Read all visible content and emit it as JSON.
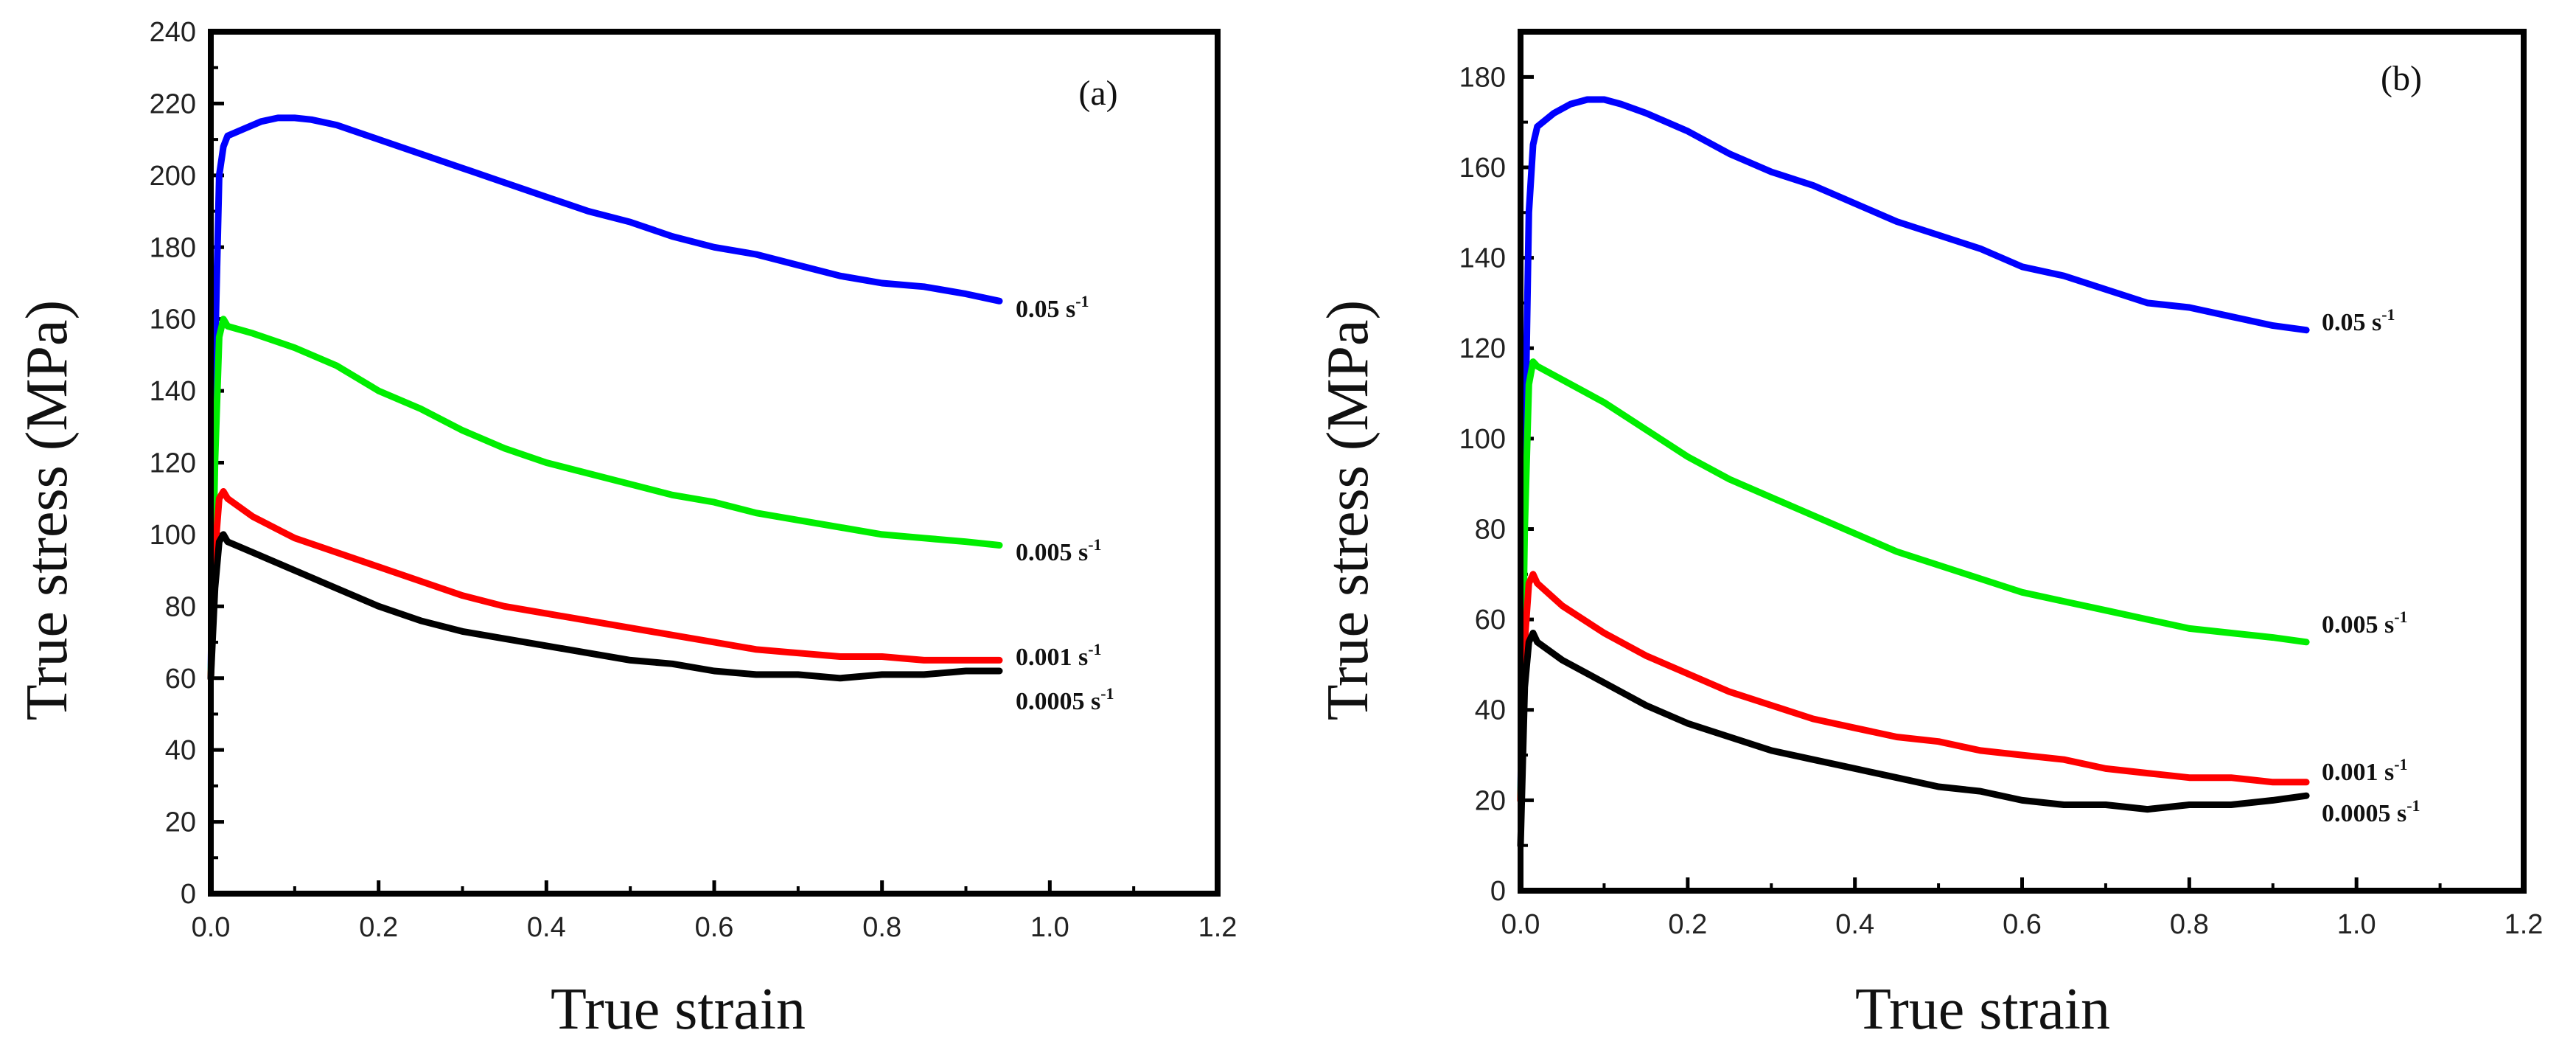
{
  "chart_data": [
    {
      "type": "line",
      "panel_label": "(a)",
      "xlabel": "True strain",
      "ylabel": "True stress (MPa)",
      "xlim": [
        0,
        1.2
      ],
      "ylim": [
        0,
        240
      ],
      "xticks": [
        0.0,
        0.2,
        0.4,
        0.6,
        0.8,
        1.0,
        1.2
      ],
      "xtick_labels": [
        "0.0",
        "0.2",
        "0.4",
        "0.6",
        "0.8",
        "1.0",
        "1.2"
      ],
      "yticks": [
        0,
        20,
        40,
        60,
        80,
        100,
        120,
        140,
        160,
        180,
        200,
        220,
        240
      ],
      "ytick_labels": [
        "0",
        "20",
        "40",
        "60",
        "80",
        "100",
        "120",
        "140",
        "160",
        "180",
        "200",
        "220",
        "240"
      ],
      "series": [
        {
          "name": "0.05",
          "label_text": "0.05 s",
          "label_sup": "-1",
          "color": "#0000ff",
          "x": [
            0.0,
            0.005,
            0.01,
            0.015,
            0.02,
            0.04,
            0.06,
            0.08,
            0.1,
            0.12,
            0.15,
            0.2,
            0.25,
            0.3,
            0.35,
            0.4,
            0.45,
            0.5,
            0.55,
            0.6,
            0.65,
            0.7,
            0.75,
            0.8,
            0.85,
            0.9,
            0.94
          ],
          "y": [
            60,
            150,
            200,
            208,
            211,
            213,
            215,
            216,
            216,
            215.5,
            214,
            210,
            206,
            202,
            198,
            194,
            190,
            187,
            183,
            180,
            178,
            175,
            172,
            170,
            169,
            167,
            165
          ]
        },
        {
          "name": "0.005",
          "label_text": "0.005 s",
          "label_sup": "-1",
          "color": "#00ee00",
          "x": [
            0.0,
            0.005,
            0.01,
            0.015,
            0.02,
            0.05,
            0.1,
            0.15,
            0.2,
            0.25,
            0.3,
            0.35,
            0.4,
            0.45,
            0.5,
            0.55,
            0.6,
            0.65,
            0.7,
            0.75,
            0.8,
            0.85,
            0.9,
            0.94
          ],
          "y": [
            60,
            120,
            155,
            160,
            158,
            156,
            152,
            147,
            140,
            135,
            129,
            124,
            120,
            117,
            114,
            111,
            109,
            106,
            104,
            102,
            100,
            99,
            98,
            97
          ]
        },
        {
          "name": "0.001",
          "label_text": "0.001 s",
          "label_sup": "-1",
          "color": "#ff0000",
          "x": [
            0.0,
            0.005,
            0.01,
            0.015,
            0.02,
            0.05,
            0.1,
            0.15,
            0.2,
            0.25,
            0.3,
            0.35,
            0.4,
            0.45,
            0.5,
            0.55,
            0.6,
            0.65,
            0.7,
            0.75,
            0.8,
            0.85,
            0.9,
            0.94
          ],
          "y": [
            60,
            95,
            110,
            112,
            110,
            105,
            99,
            95,
            91,
            87,
            83,
            80,
            78,
            76,
            74,
            72,
            70,
            68,
            67,
            66,
            66,
            65,
            65,
            65
          ]
        },
        {
          "name": "0.0005",
          "label_text": "0.0005 s",
          "label_sup": "-1",
          "color": "#000000",
          "x": [
            0.0,
            0.005,
            0.01,
            0.015,
            0.02,
            0.05,
            0.1,
            0.15,
            0.2,
            0.25,
            0.3,
            0.35,
            0.4,
            0.45,
            0.5,
            0.55,
            0.6,
            0.65,
            0.7,
            0.75,
            0.8,
            0.85,
            0.9,
            0.94
          ],
          "y": [
            60,
            85,
            98,
            100,
            98,
            95,
            90,
            85,
            80,
            76,
            73,
            71,
            69,
            67,
            65,
            64,
            62,
            61,
            61,
            60,
            61,
            61,
            62,
            62
          ]
        }
      ]
    },
    {
      "type": "line",
      "panel_label": "(b)",
      "xlabel": "True strain",
      "ylabel": "True stress (MPa)",
      "xlim": [
        0,
        1.2
      ],
      "ylim": [
        0,
        190
      ],
      "xticks": [
        0.0,
        0.2,
        0.4,
        0.6,
        0.8,
        1.0,
        1.2
      ],
      "xtick_labels": [
        "0.0",
        "0.2",
        "0.4",
        "0.6",
        "0.8",
        "1.0",
        "1.2"
      ],
      "yticks": [
        0,
        20,
        40,
        60,
        80,
        100,
        120,
        140,
        160,
        180
      ],
      "ytick_labels": [
        "0",
        "20",
        "40",
        "60",
        "80",
        "100",
        "120",
        "140",
        "160",
        "180"
      ],
      "series": [
        {
          "name": "0.05",
          "label_text": "0.05 s",
          "label_sup": "-1",
          "color": "#0000ff",
          "x": [
            0.0,
            0.005,
            0.01,
            0.015,
            0.02,
            0.04,
            0.06,
            0.08,
            0.1,
            0.12,
            0.15,
            0.2,
            0.25,
            0.3,
            0.35,
            0.4,
            0.45,
            0.5,
            0.55,
            0.6,
            0.65,
            0.7,
            0.75,
            0.8,
            0.85,
            0.9,
            0.94
          ],
          "y": [
            20,
            95,
            150,
            165,
            169,
            172,
            174,
            175,
            175,
            174,
            172,
            168,
            163,
            159,
            156,
            152,
            148,
            145,
            142,
            138,
            136,
            133,
            130,
            129,
            127,
            125,
            124
          ]
        },
        {
          "name": "0.005",
          "label_text": "0.005 s",
          "label_sup": "-1",
          "color": "#00ee00",
          "x": [
            0.0,
            0.005,
            0.01,
            0.015,
            0.02,
            0.05,
            0.1,
            0.15,
            0.2,
            0.25,
            0.3,
            0.35,
            0.4,
            0.45,
            0.5,
            0.55,
            0.6,
            0.65,
            0.7,
            0.75,
            0.8,
            0.85,
            0.9,
            0.94
          ],
          "y": [
            20,
            80,
            112,
            117,
            116,
            113,
            108,
            102,
            96,
            91,
            87,
            83,
            79,
            75,
            72,
            69,
            66,
            64,
            62,
            60,
            58,
            57,
            56,
            55
          ]
        },
        {
          "name": "0.001",
          "label_text": "0.001 s",
          "label_sup": "-1",
          "color": "#ff0000",
          "x": [
            0.0,
            0.005,
            0.01,
            0.015,
            0.02,
            0.05,
            0.1,
            0.15,
            0.2,
            0.25,
            0.3,
            0.35,
            0.4,
            0.45,
            0.5,
            0.55,
            0.6,
            0.65,
            0.7,
            0.75,
            0.8,
            0.85,
            0.9,
            0.94
          ],
          "y": [
            20,
            55,
            68,
            70,
            68,
            63,
            57,
            52,
            48,
            44,
            41,
            38,
            36,
            34,
            33,
            31,
            30,
            29,
            27,
            26,
            25,
            25,
            24,
            24
          ]
        },
        {
          "name": "0.0005",
          "label_text": "0.0005 s",
          "label_sup": "-1",
          "color": "#000000",
          "x": [
            0.0,
            0.005,
            0.01,
            0.015,
            0.02,
            0.05,
            0.1,
            0.15,
            0.2,
            0.25,
            0.3,
            0.35,
            0.4,
            0.45,
            0.5,
            0.55,
            0.6,
            0.65,
            0.7,
            0.75,
            0.8,
            0.85,
            0.9,
            0.94
          ],
          "y": [
            10,
            45,
            55,
            57,
            55,
            51,
            46,
            41,
            37,
            34,
            31,
            29,
            27,
            25,
            23,
            22,
            20,
            19,
            19,
            18,
            19,
            19,
            20,
            21
          ]
        }
      ]
    }
  ]
}
